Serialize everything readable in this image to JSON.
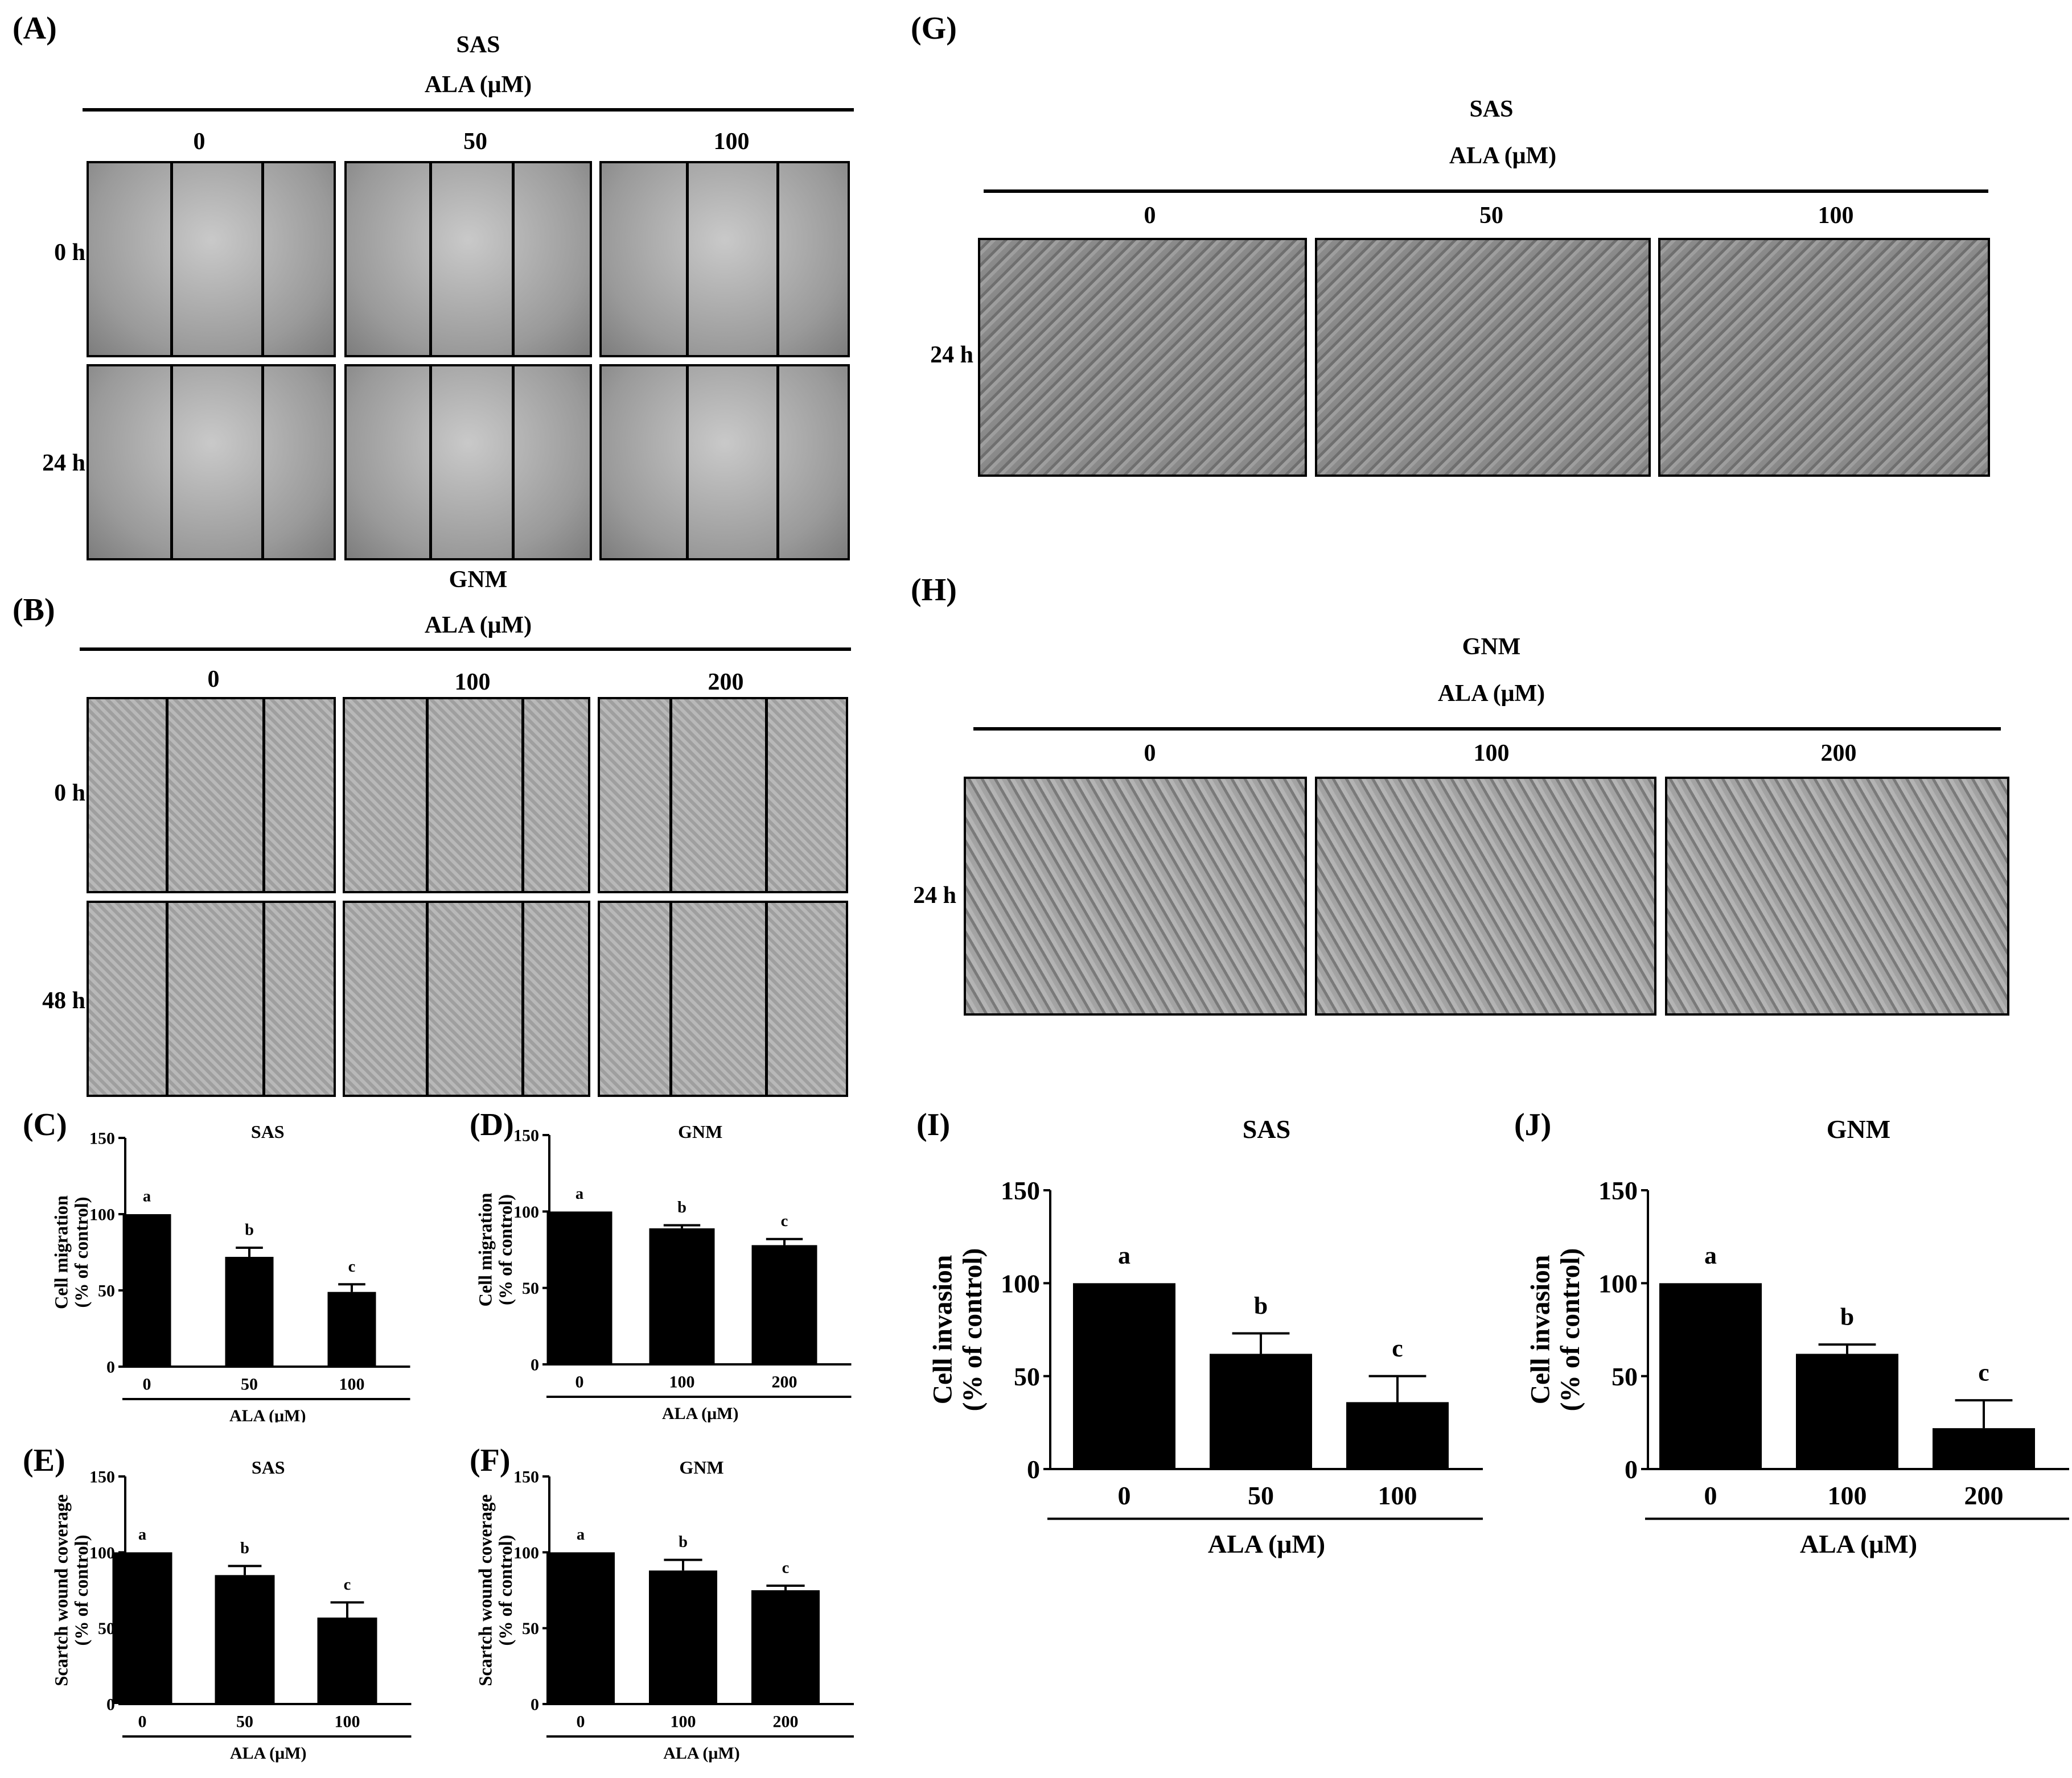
{
  "panels": {
    "A": {
      "letter": "(A)",
      "cell_line": "SAS",
      "treatment": "ALA (μM)",
      "doses": [
        "0",
        "50",
        "100"
      ],
      "times": [
        "0 h",
        "24 h"
      ]
    },
    "B": {
      "letter": "(B)",
      "cell_line": "GNM",
      "treatment": "ALA (μM)",
      "doses": [
        "0",
        "100",
        "200"
      ],
      "times": [
        "0 h",
        "48 h"
      ]
    },
    "G": {
      "letter": "(G)",
      "cell_line": "SAS",
      "treatment": "ALA (μM)",
      "doses": [
        "0",
        "50",
        "100"
      ],
      "times": [
        "24 h"
      ]
    },
    "H": {
      "letter": "(H)",
      "cell_line": "GNM",
      "treatment": "ALA (μM)",
      "doses": [
        "0",
        "100",
        "200"
      ],
      "times": [
        "24 h"
      ]
    }
  },
  "chart_data": [
    {
      "id": "C",
      "type": "bar",
      "letter": "(C)",
      "title": "SAS",
      "categories": [
        "0",
        "50",
        "100"
      ],
      "values": [
        100,
        72,
        49
      ],
      "errors": [
        0,
        6,
        5
      ],
      "sig": [
        "a",
        "b",
        "c"
      ],
      "ylabel": "Cell migration\n(% of control)",
      "xlabel": "ALA (μM)",
      "ylim": [
        0,
        150
      ],
      "yticks": [
        0,
        50,
        100,
        150
      ]
    },
    {
      "id": "D",
      "type": "bar",
      "letter": "(D)",
      "title": "GNM",
      "categories": [
        "0",
        "100",
        "200"
      ],
      "values": [
        100,
        89,
        78
      ],
      "errors": [
        0,
        2,
        4
      ],
      "sig": [
        "a",
        "b",
        "c"
      ],
      "ylabel": "Cell migration\n(% of control)",
      "xlabel": "ALA (μM)",
      "ylim": [
        0,
        150
      ],
      "yticks": [
        0,
        50,
        100,
        150
      ]
    },
    {
      "id": "E",
      "type": "bar",
      "letter": "(E)",
      "title": "SAS",
      "categories": [
        "0",
        "50",
        "100"
      ],
      "values": [
        100,
        85,
        57
      ],
      "errors": [
        0,
        6,
        10
      ],
      "sig": [
        "a",
        "b",
        "c"
      ],
      "ylabel": "Scartch wound coverage\n(% of control)",
      "xlabel": "ALA (μM)",
      "ylim": [
        0,
        150
      ],
      "yticks": [
        0,
        50,
        100,
        150
      ]
    },
    {
      "id": "F",
      "type": "bar",
      "letter": "(F)",
      "title": "GNM",
      "categories": [
        "0",
        "100",
        "200"
      ],
      "values": [
        100,
        88,
        75
      ],
      "errors": [
        0,
        7,
        3
      ],
      "sig": [
        "a",
        "b",
        "c"
      ],
      "ylabel": "Scartch wound coverage\n(% of control)",
      "xlabel": "ALA (μM)",
      "ylim": [
        0,
        150
      ],
      "yticks": [
        0,
        50,
        100,
        150
      ]
    },
    {
      "id": "I",
      "type": "bar",
      "letter": "(I)",
      "title": "SAS",
      "categories": [
        "0",
        "50",
        "100"
      ],
      "values": [
        100,
        62,
        36
      ],
      "errors": [
        0,
        11,
        14
      ],
      "sig": [
        "a",
        "b",
        "c"
      ],
      "ylabel": "Cell invasion\n(% of control)",
      "xlabel": "ALA (μM)",
      "ylim": [
        0,
        150
      ],
      "yticks": [
        0,
        50,
        100,
        150
      ]
    },
    {
      "id": "J",
      "type": "bar",
      "letter": "(J)",
      "title": "GNM",
      "categories": [
        "0",
        "100",
        "200"
      ],
      "values": [
        100,
        62,
        22
      ],
      "errors": [
        0,
        5,
        15
      ],
      "sig": [
        "a",
        "b",
        "c"
      ],
      "ylabel": "Cell invasion\n(% of control)",
      "xlabel": "ALA (μM)",
      "ylim": [
        0,
        150
      ],
      "yticks": [
        0,
        50,
        100,
        150
      ]
    }
  ]
}
